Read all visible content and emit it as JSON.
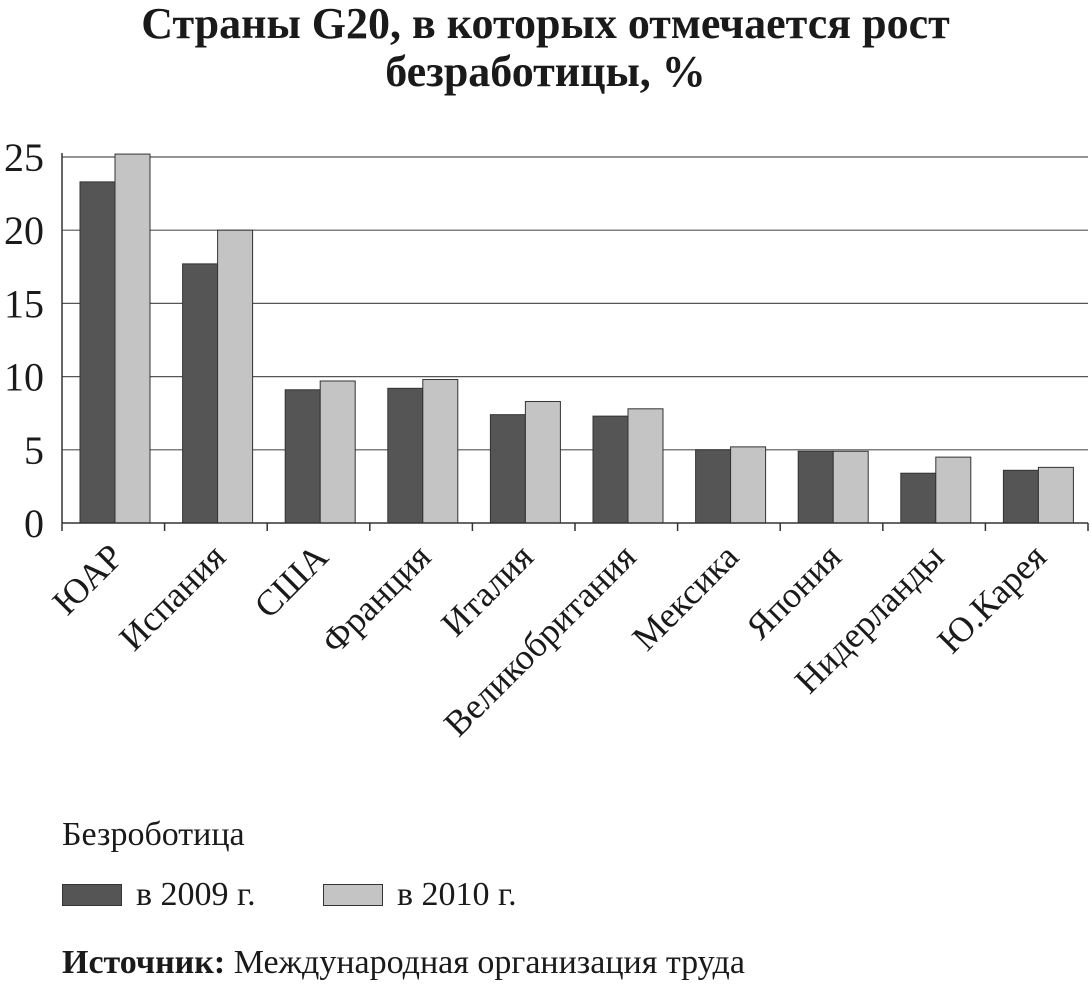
{
  "title_line1": "Страны G20, в которых отмечается рост",
  "title_line2": "безработицы, %",
  "chart_data": {
    "type": "bar",
    "title": "Страны G20, в которых отмечается рост безработицы, %",
    "categories": [
      "ЮАР",
      "Испания",
      "США",
      "Франция",
      "Италия",
      "Великобритания",
      "Мексика",
      "Япония",
      "Нидерланды",
      "Ю.Карея"
    ],
    "series": [
      {
        "name": "в 2009 г.",
        "color": "#555555",
        "values": [
          23.3,
          17.7,
          9.1,
          9.2,
          7.4,
          7.3,
          5.0,
          4.9,
          3.4,
          3.6
        ]
      },
      {
        "name": "в 2010 г.",
        "color": "#c4c4c4",
        "values": [
          25.2,
          20.0,
          9.7,
          9.8,
          8.3,
          7.8,
          5.2,
          4.9,
          4.5,
          3.8
        ]
      }
    ],
    "yticks": [
      0,
      5,
      10,
      15,
      20,
      25
    ],
    "ylim": [
      0,
      25
    ],
    "grid": true,
    "legend_position": "bottom-left"
  },
  "legend": {
    "title": "Безроботица",
    "items": [
      "в 2009 г.",
      "в 2010 г."
    ]
  },
  "source": {
    "label": "Источник:",
    "text": "Международная организация труда"
  }
}
